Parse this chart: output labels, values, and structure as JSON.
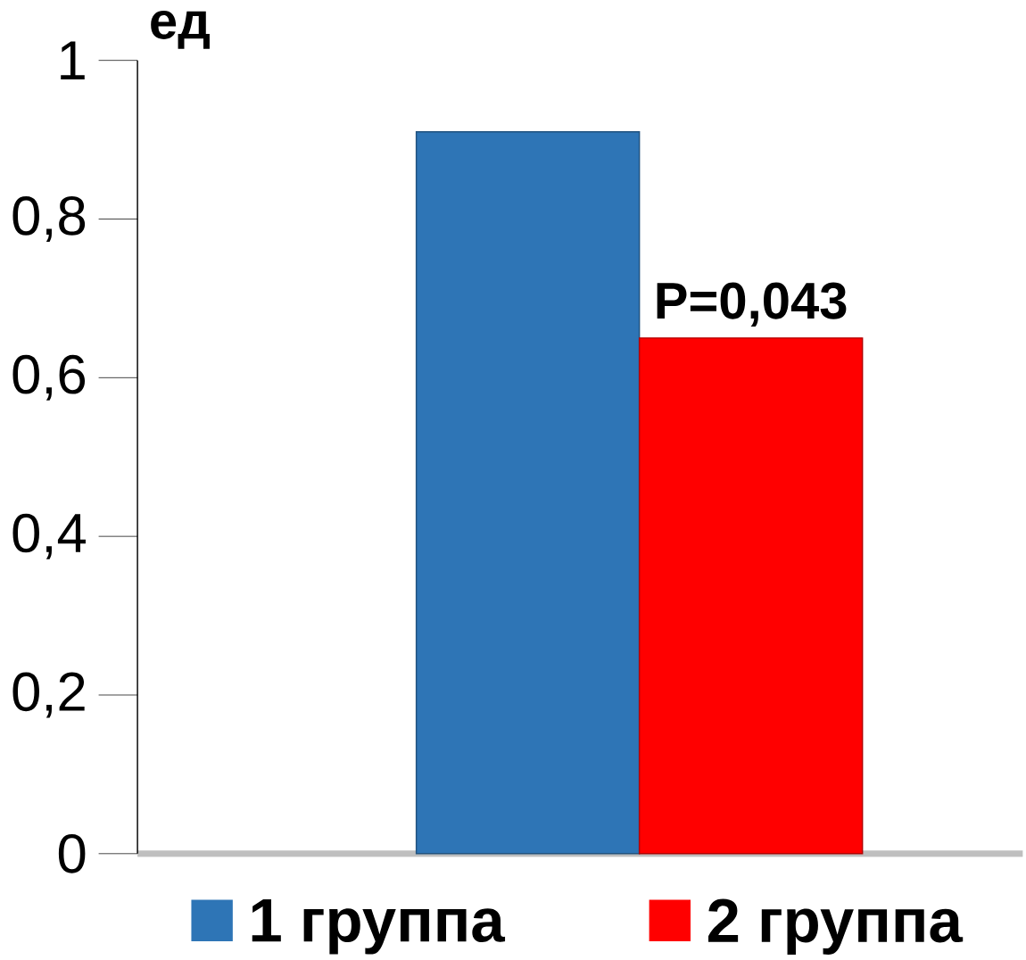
{
  "chart_data": {
    "type": "bar",
    "ylabel": "ед",
    "categories": [
      null
    ],
    "series": [
      {
        "name": "1 группа",
        "color": "#2e75b6",
        "values": [
          0.91
        ]
      },
      {
        "name": "2 группа",
        "color": "#ff0000",
        "values": [
          0.65
        ]
      }
    ],
    "ylim": [
      0,
      1
    ],
    "yticks": [
      0,
      {
        "value": 0.2,
        "label": "0,2"
      },
      {
        "value": 0.4,
        "label": "0,4"
      },
      {
        "value": 0.6,
        "label": "0,6"
      },
      {
        "value": 0.8,
        "label": "0,8"
      },
      1
    ],
    "annotations": [
      {
        "text": "P=0,043",
        "y": 0.65
      }
    ],
    "legend": "bottom",
    "grid": false
  }
}
